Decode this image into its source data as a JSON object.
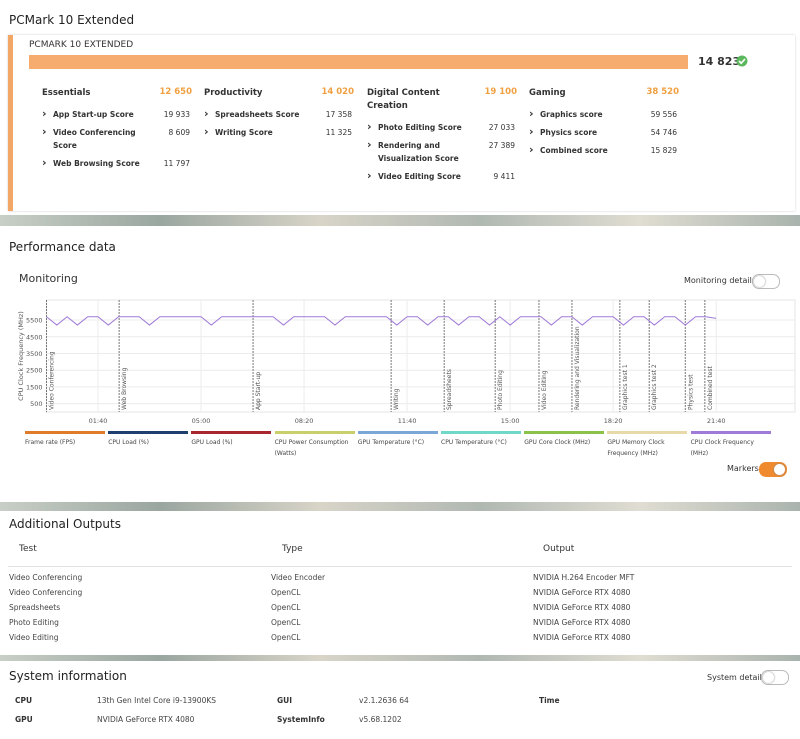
{
  "title": "PCMark 10 Extended",
  "score_card": {
    "name": "PCMARK 10 EXTENDED",
    "score": "14 823",
    "groups": [
      {
        "name": "Essentials",
        "score": "12 650",
        "items": [
          {
            "name": "App Start-up Score",
            "score": "19 933"
          },
          {
            "name": "Video Conferencing Score",
            "score": "8 609"
          },
          {
            "name": "Web Browsing Score",
            "score": "11 797"
          }
        ]
      },
      {
        "name": "Productivity",
        "score": "14 020",
        "items": [
          {
            "name": "Spreadsheets Score",
            "score": "17 358"
          },
          {
            "name": "Writing Score",
            "score": "11 325"
          }
        ]
      },
      {
        "name": "Digital Content Creation",
        "score": "19 100",
        "items": [
          {
            "name": "Photo Editing Score",
            "score": "27 033"
          },
          {
            "name": "Rendering and Visualization Score",
            "score": "27 389"
          },
          {
            "name": "Video Editing Score",
            "score": "9 411"
          }
        ]
      },
      {
        "name": "Gaming",
        "score": "38 520",
        "items": [
          {
            "name": "Graphics score",
            "score": "59 556"
          },
          {
            "name": "Physics score",
            "score": "54 746"
          },
          {
            "name": "Combined score",
            "score": "15 829"
          }
        ]
      }
    ]
  },
  "performance": {
    "title": "Performance data",
    "monitoring_title": "Monitoring",
    "monitoring_details": "Monitoring details",
    "markers_toggle": "Markers",
    "chart": {
      "type": "line",
      "y_label": "CPU Clock Frequency (MHz)",
      "ylim": [
        0,
        6700
      ],
      "yticks": [
        500,
        1500,
        2500,
        3500,
        4500,
        5500
      ],
      "xlim": [
        0,
        1453
      ],
      "xticks": [
        {
          "value": 100,
          "label": "01:40"
        },
        {
          "value": 300,
          "label": "05:00"
        },
        {
          "value": 500,
          "label": "08:20"
        },
        {
          "value": 700,
          "label": "11:40"
        },
        {
          "value": 900,
          "label": "15:00"
        },
        {
          "value": 1100,
          "label": "18:20"
        },
        {
          "value": 1300,
          "label": "21:40"
        }
      ],
      "grid": true,
      "markers": [
        {
          "x": 0,
          "label": "Video Conferencing"
        },
        {
          "x": 141,
          "label": "Web Browsing"
        },
        {
          "x": 401,
          "label": "App Start-up"
        },
        {
          "x": 669,
          "label": "Writing"
        },
        {
          "x": 772,
          "label": "Spreadsheets"
        },
        {
          "x": 871,
          "label": "Photo Editing"
        },
        {
          "x": 956,
          "label": "Video Editing"
        },
        {
          "x": 1020,
          "label": "Rendering and Visualization"
        },
        {
          "x": 1113,
          "label": "Graphics test 1"
        },
        {
          "x": 1170,
          "label": "Graphics test 2"
        },
        {
          "x": 1240,
          "label": "Physics test"
        },
        {
          "x": 1278,
          "label": "Combined test"
        }
      ],
      "series": [
        {
          "name": "CPU Clock Frequency (MHz)",
          "color": "#a07ad8",
          "x": [
            0,
            20,
            40,
            60,
            80,
            100,
            120,
            140,
            160,
            180,
            200,
            220,
            240,
            260,
            280,
            300,
            320,
            340,
            360,
            380,
            400,
            420,
            440,
            460,
            480,
            500,
            520,
            540,
            560,
            580,
            600,
            620,
            640,
            660,
            680,
            700,
            720,
            740,
            760,
            780,
            800,
            820,
            840,
            860,
            880,
            900,
            920,
            940,
            960,
            980,
            1000,
            1020,
            1040,
            1060,
            1080,
            1100,
            1120,
            1140,
            1160,
            1180,
            1200,
            1220,
            1240,
            1260,
            1280,
            1300
          ],
          "values": [
            5700,
            5200,
            5700,
            5200,
            5700,
            5700,
            5200,
            5700,
            5700,
            5700,
            5200,
            5700,
            5700,
            5700,
            5700,
            5700,
            5200,
            5700,
            5700,
            5700,
            5700,
            5700,
            5700,
            5200,
            5700,
            5700,
            5700,
            5700,
            5200,
            5700,
            5700,
            5700,
            5700,
            5700,
            5200,
            5700,
            5700,
            5200,
            5700,
            5700,
            5200,
            5700,
            5700,
            5200,
            5700,
            5200,
            5700,
            5700,
            5700,
            5200,
            5700,
            5700,
            5200,
            5700,
            5700,
            5700,
            5200,
            5700,
            5700,
            5200,
            5700,
            5700,
            5200,
            5700,
            5700,
            5600
          ]
        }
      ]
    },
    "legend": [
      {
        "name": "Frame rate (FPS)",
        "color": "#e07b2a"
      },
      {
        "name": "CPU Load (%)",
        "color": "#1f3f6e"
      },
      {
        "name": "GPU Load (%)",
        "color": "#a8262d"
      },
      {
        "name": "CPU Power Consumption (Watts)",
        "color": "#c9cf6a"
      },
      {
        "name": "GPU Temperature (°C)",
        "color": "#7aa7d8"
      },
      {
        "name": "CPU Temperature (°C)",
        "color": "#6fd8c8"
      },
      {
        "name": "GPU Core Clock (MHz)",
        "color": "#8dc24a"
      },
      {
        "name": "GPU Memory Clock Frequency (MHz)",
        "color": "#e8d9a8"
      },
      {
        "name": "CPU Clock Frequency (MHz)",
        "color": "#a07ad8"
      }
    ]
  },
  "additional_outputs": {
    "title": "Additional Outputs",
    "columns": [
      "Test",
      "Type",
      "Output"
    ],
    "rows": [
      [
        "Video Conferencing",
        "Video Encoder",
        "NVIDIA H.264 Encoder MFT"
      ],
      [
        "Video Conferencing",
        "OpenCL",
        "NVIDIA GeForce RTX 4080"
      ],
      [
        "Spreadsheets",
        "OpenCL",
        "NVIDIA GeForce RTX 4080"
      ],
      [
        "Photo Editing",
        "OpenCL",
        "NVIDIA GeForce RTX 4080"
      ],
      [
        "Video Editing",
        "OpenCL",
        "NVIDIA GeForce RTX 4080"
      ]
    ]
  },
  "system_information": {
    "title": "System information",
    "details_toggle": "System details",
    "rows": [
      [
        "CPU",
        "13th Gen Intel Core i9-13900KS",
        "GUI",
        "v2.1.2636 64",
        "Time"
      ],
      [
        "GPU",
        "NVIDIA GeForce RTX 4080",
        "SystemInfo",
        "v5.68.1202"
      ]
    ]
  }
}
